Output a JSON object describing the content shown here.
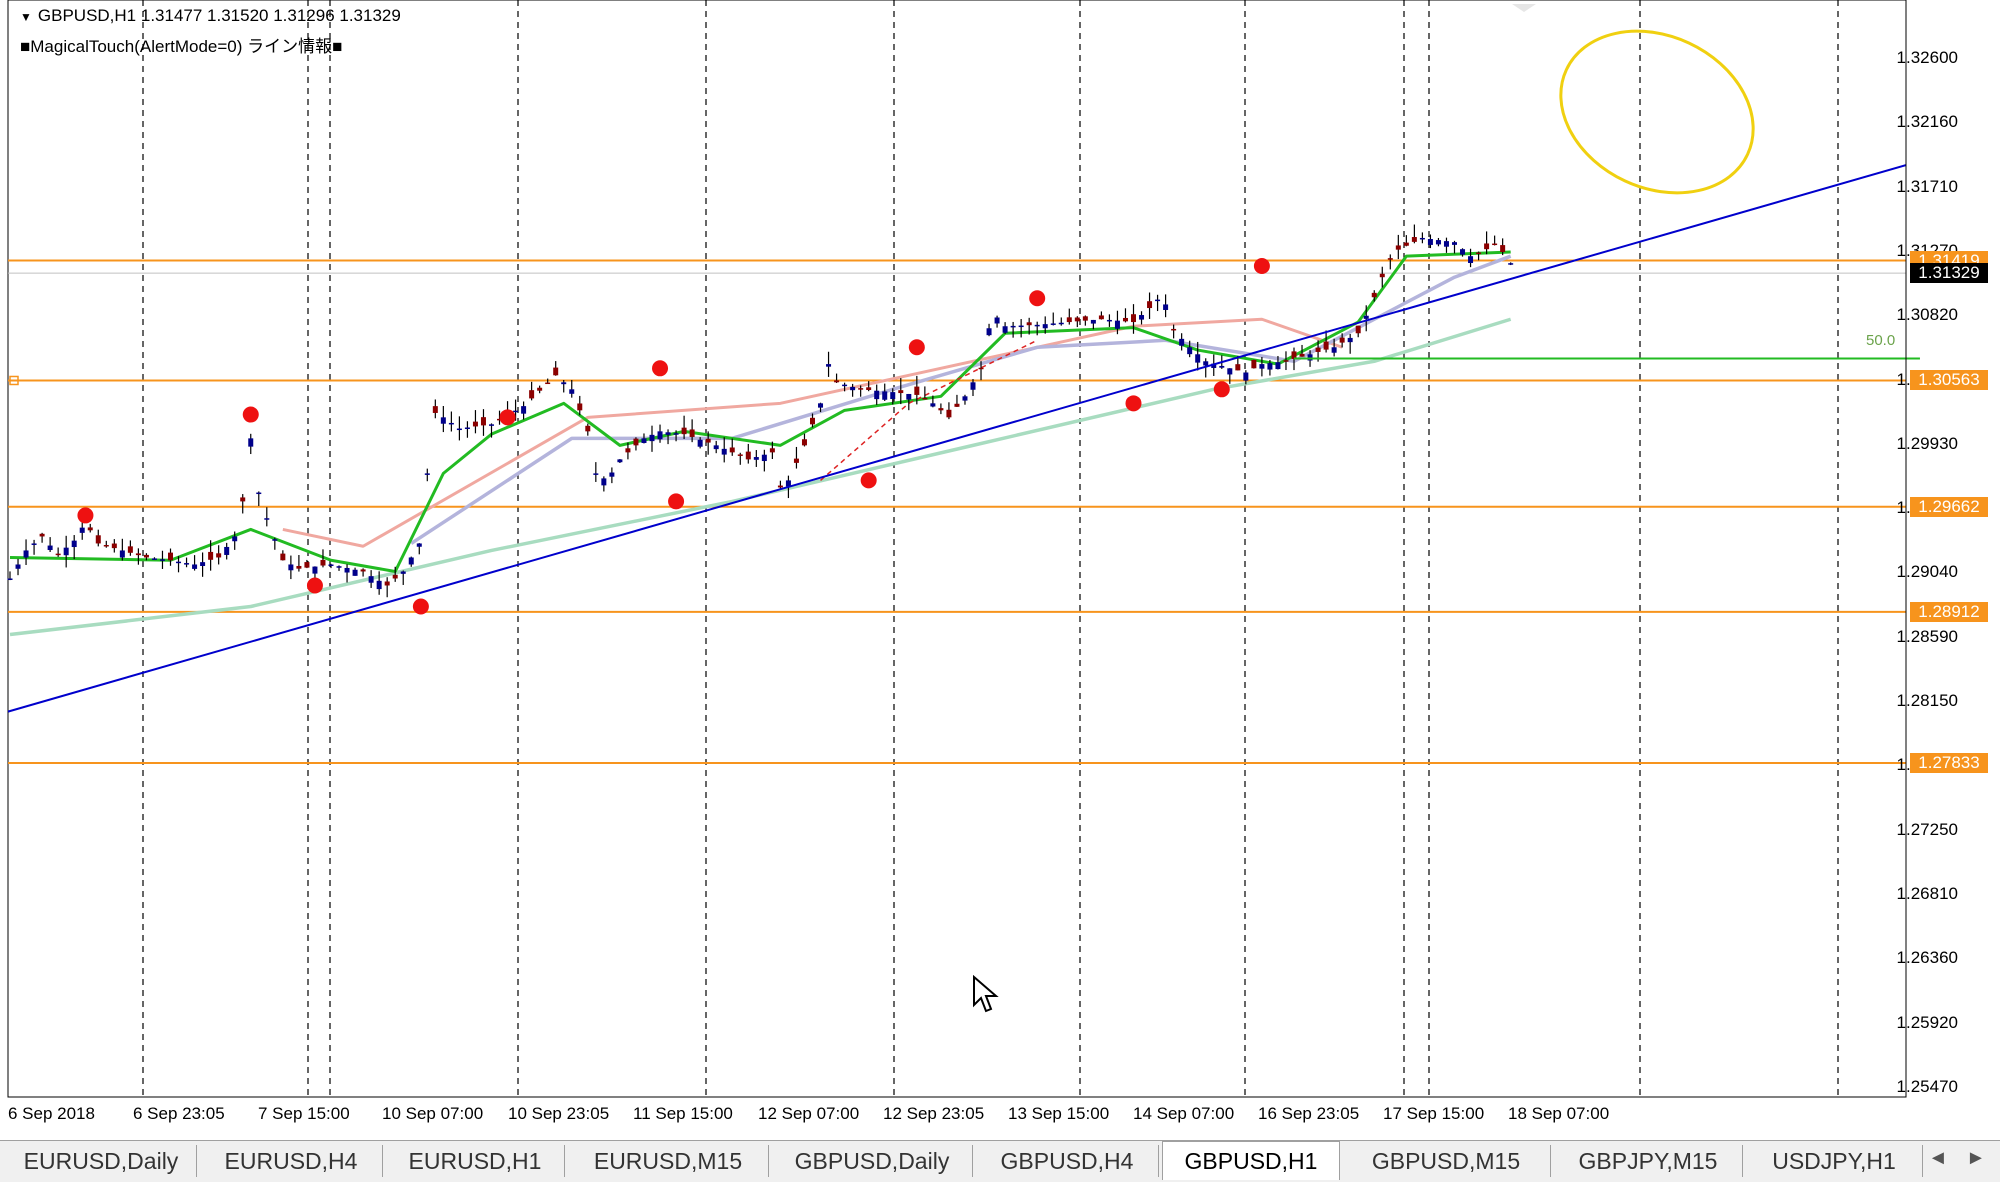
{
  "header": {
    "symbol_line": "GBPUSD,H1  1.31477 1.31520 1.31296 1.31329",
    "indicator_line": "■MagicalTouch(AlertMode=0) ライン情報■"
  },
  "price_axis": [
    "1.32600",
    "1.32160",
    "1.31710",
    "1.31270",
    "1.30820",
    "1.30370",
    "1.29930",
    "1.29480",
    "1.29040",
    "1.28590",
    "1.28150",
    "1.27700",
    "1.27250",
    "1.26810",
    "1.26360",
    "1.25920",
    "1.25470"
  ],
  "time_axis": [
    "6 Sep 2018",
    "6 Sep 23:05",
    "7 Sep 15:00",
    "10 Sep 07:00",
    "10 Sep 23:05",
    "11 Sep 15:00",
    "12 Sep 07:00",
    "12 Sep 23:05",
    "13 Sep 15:00",
    "14 Sep 07:00",
    "16 Sep 23:05",
    "17 Sep 15:00",
    "18 Sep 07:00"
  ],
  "horizontal_levels": [
    "1.31419",
    "1.30563",
    "1.29662",
    "1.28912",
    "1.27833"
  ],
  "current_price_tag": "1.31329",
  "fibo_label": "50.0",
  "colors": {
    "level_line": "#f7941d",
    "trendline": "#0000cc",
    "ma_fast": "#22bb22",
    "ma_mid": "#b4b4dc",
    "ma_slow": "#a8dcc0",
    "ma_red": "#f0a8a0",
    "ellipse": "#f0d010",
    "touch_dot": "#ee1111",
    "candle_up": "#00008b",
    "candle_down": "#8b0000"
  },
  "tabs": [
    {
      "label": "EURUSD,Daily",
      "active": false
    },
    {
      "label": "EURUSD,H4",
      "active": false
    },
    {
      "label": "EURUSD,H1",
      "active": false
    },
    {
      "label": "EURUSD,M15",
      "active": false
    },
    {
      "label": "GBPUSD,Daily",
      "active": false
    },
    {
      "label": "GBPUSD,H4",
      "active": false
    },
    {
      "label": "GBPUSD,H1",
      "active": true
    },
    {
      "label": "GBPUSD,M15",
      "active": false
    },
    {
      "label": "GBPJPY,M15",
      "active": false
    },
    {
      "label": "USDJPY,H1",
      "active": false
    }
  ],
  "tab_nav": {
    "left": "◄",
    "right": "►"
  },
  "chart_data": {
    "type": "candlestick",
    "symbol": "GBPUSD",
    "timeframe": "H1",
    "ylim": [
      1.2525,
      1.3285
    ],
    "ohlc_last": {
      "open": 1.31477,
      "high": 1.3152,
      "low": 1.31296,
      "close": 1.31329
    },
    "close_path": [
      [
        0,
        1.2915
      ],
      [
        10,
        1.2935
      ],
      [
        20,
        1.2945
      ],
      [
        30,
        1.2932
      ],
      [
        40,
        1.2942
      ],
      [
        47,
        1.2955
      ],
      [
        55,
        1.294
      ],
      [
        70,
        1.2935
      ],
      [
        85,
        1.293
      ],
      [
        100,
        1.2928
      ],
      [
        115,
        1.2925
      ],
      [
        130,
        1.293
      ],
      [
        140,
        1.2945
      ],
      [
        146,
        1.2975
      ],
      [
        150,
        1.3015
      ],
      [
        154,
        1.298
      ],
      [
        160,
        1.2958
      ],
      [
        170,
        1.2928
      ],
      [
        180,
        1.2922
      ],
      [
        200,
        1.2925
      ],
      [
        220,
        1.292
      ],
      [
        235,
        1.291
      ],
      [
        245,
        1.292
      ],
      [
        255,
        1.294
      ],
      [
        260,
        1.299
      ],
      [
        262,
        1.3035
      ],
      [
        270,
        1.303
      ],
      [
        280,
        1.3022
      ],
      [
        300,
        1.3025
      ],
      [
        320,
        1.3038
      ],
      [
        340,
        1.306
      ],
      [
        350,
        1.305
      ],
      [
        360,
        1.302
      ],
      [
        365,
        1.299
      ],
      [
        372,
        1.2985
      ],
      [
        380,
        1.3
      ],
      [
        395,
        1.3015
      ],
      [
        405,
        1.302
      ],
      [
        420,
        1.3018
      ],
      [
        440,
        1.301
      ],
      [
        460,
        1.3
      ],
      [
        475,
        1.3005
      ],
      [
        480,
        1.298
      ],
      [
        485,
        1.2985
      ],
      [
        495,
        1.301
      ],
      [
        505,
        1.304
      ],
      [
        510,
        1.3068
      ],
      [
        515,
        1.3055
      ],
      [
        530,
        1.305
      ],
      [
        550,
        1.3048
      ],
      [
        565,
        1.3046
      ],
      [
        575,
        1.304
      ],
      [
        585,
        1.303
      ],
      [
        595,
        1.3045
      ],
      [
        605,
        1.3065
      ],
      [
        612,
        1.3105
      ],
      [
        620,
        1.3095
      ],
      [
        640,
        1.3096
      ],
      [
        660,
        1.3098
      ],
      [
        680,
        1.31
      ],
      [
        700,
        1.3098
      ],
      [
        712,
        1.311
      ],
      [
        718,
        1.3118
      ],
      [
        725,
        1.3092
      ],
      [
        735,
        1.308
      ],
      [
        745,
        1.307
      ],
      [
        760,
        1.3065
      ],
      [
        770,
        1.3062
      ],
      [
        780,
        1.3068
      ],
      [
        795,
        1.307
      ],
      [
        810,
        1.3075
      ],
      [
        825,
        1.308
      ],
      [
        840,
        1.309
      ],
      [
        848,
        1.311
      ],
      [
        855,
        1.313
      ],
      [
        862,
        1.3148
      ],
      [
        880,
        1.3158
      ],
      [
        900,
        1.3155
      ],
      [
        910,
        1.3145
      ],
      [
        920,
        1.315
      ],
      [
        925,
        1.3154
      ],
      [
        930,
        1.3148
      ],
      [
        935,
        1.314
      ]
    ],
    "swing_points": [
      [
        47,
        1.296
      ],
      [
        150,
        1.3032
      ],
      [
        190,
        1.291
      ],
      [
        256,
        1.2895
      ],
      [
        310,
        1.303
      ],
      [
        405,
        1.3065
      ],
      [
        415,
        1.297
      ],
      [
        565,
        1.308
      ],
      [
        535,
        1.2985
      ],
      [
        700,
        1.304
      ],
      [
        640,
        1.3115
      ],
      [
        780,
        1.3138
      ],
      [
        755,
        1.305
      ]
    ],
    "horizontal_levels": [
      1.31419,
      1.30563,
      1.29662,
      1.28912,
      1.27833
    ],
    "trendline": [
      [
        0,
        1.282
      ],
      [
        1190,
        1.321
      ]
    ],
    "ma_fast": [
      [
        0,
        1.293
      ],
      [
        100,
        1.2928
      ],
      [
        150,
        1.295
      ],
      [
        200,
        1.2928
      ],
      [
        240,
        1.292
      ],
      [
        270,
        1.299
      ],
      [
        300,
        1.3018
      ],
      [
        345,
        1.304
      ],
      [
        380,
        1.301
      ],
      [
        420,
        1.302
      ],
      [
        480,
        1.301
      ],
      [
        520,
        1.3035
      ],
      [
        580,
        1.3045
      ],
      [
        620,
        1.309
      ],
      [
        700,
        1.3094
      ],
      [
        740,
        1.3078
      ],
      [
        790,
        1.3068
      ],
      [
        840,
        1.3098
      ],
      [
        870,
        1.3145
      ],
      [
        935,
        1.3148
      ]
    ],
    "ma_slow": [
      [
        0,
        1.2875
      ],
      [
        150,
        1.2895
      ],
      [
        300,
        1.2935
      ],
      [
        450,
        1.297
      ],
      [
        600,
        1.301
      ],
      [
        750,
        1.305
      ],
      [
        850,
        1.307
      ],
      [
        935,
        1.31
      ]
    ],
    "ma_mid": [
      [
        250,
        1.294
      ],
      [
        350,
        1.3015
      ],
      [
        450,
        1.3015
      ],
      [
        550,
        1.305
      ],
      [
        640,
        1.308
      ],
      [
        720,
        1.3085
      ],
      [
        800,
        1.307
      ],
      [
        900,
        1.313
      ],
      [
        935,
        1.3145
      ]
    ],
    "ma_red": [
      [
        170,
        1.295
      ],
      [
        220,
        1.2938
      ],
      [
        360,
        1.303
      ],
      [
        480,
        1.304
      ],
      [
        700,
        1.3095
      ],
      [
        780,
        1.31
      ],
      [
        830,
        1.308
      ]
    ]
  }
}
